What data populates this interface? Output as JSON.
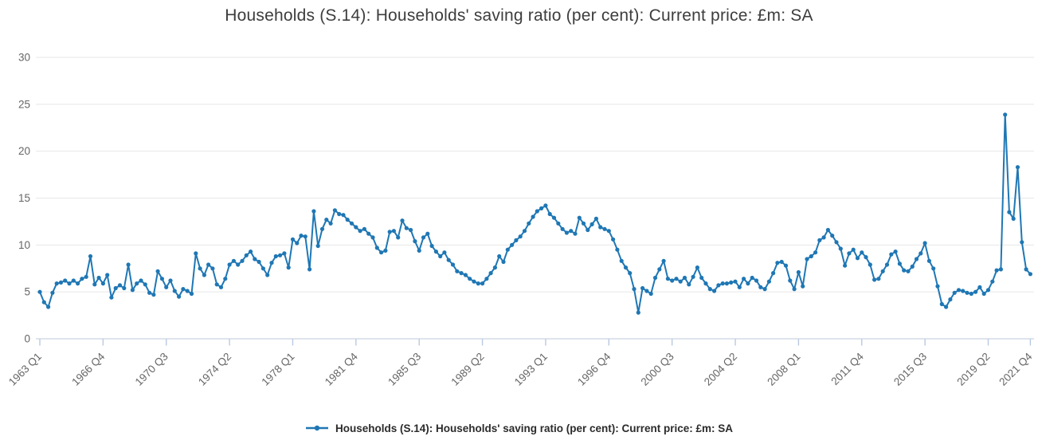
{
  "title": "Households (S.14): Households' saving ratio (per cent): Current price: £m: SA",
  "legend": {
    "label": "Households (S.14): Households' saving ratio (per cent): Current price: £m: SA",
    "marker": "line-with-dot"
  },
  "colors": {
    "line": "#1f77b4",
    "grid": "#e7e7e7",
    "axis_line": "#c9d3e2",
    "tick_mark": "#b9c9e2",
    "title_text": "#3d3d3d",
    "tick_text": "#666666",
    "legend_text": "#2b2b2b",
    "background": "#ffffff"
  },
  "chart_data": {
    "type": "line",
    "title": "Households (S.14): Households' saving ratio (per cent): Current price: £m: SA",
    "xlabel": "",
    "ylabel": "",
    "grid": "horizontal-only",
    "legend_position": "bottom-center",
    "marker": "circle",
    "x": {
      "start": "1963 Q1",
      "end": "2021 Q4",
      "frequency": "quarterly",
      "tick_labels": [
        "1963 Q1",
        "1966 Q4",
        "1970 Q3",
        "1974 Q2",
        "1978 Q1",
        "1981 Q4",
        "1985 Q3",
        "1989 Q2",
        "1993 Q1",
        "1996 Q4",
        "2000 Q3",
        "2004 Q2",
        "2008 Q1",
        "2011 Q4",
        "2015 Q3",
        "2019 Q2",
        "2021 Q4"
      ],
      "tick_indices": [
        0,
        15,
        30,
        45,
        60,
        75,
        90,
        105,
        120,
        135,
        150,
        165,
        180,
        195,
        210,
        225,
        235
      ]
    },
    "y": {
      "ticks": [
        0,
        5,
        10,
        15,
        20,
        25,
        30
      ],
      "range": [
        0,
        30
      ]
    },
    "series": [
      {
        "name": "Households (S.14): Households' saving ratio (per cent): Current price: £m: SA",
        "color": "#1f77b4",
        "values": [
          5.0,
          3.9,
          3.4,
          4.9,
          5.9,
          6.0,
          6.2,
          5.9,
          6.2,
          5.9,
          6.4,
          6.6,
          8.8,
          5.8,
          6.5,
          5.9,
          6.8,
          4.4,
          5.4,
          5.7,
          5.4,
          7.9,
          5.2,
          5.9,
          6.2,
          5.8,
          4.9,
          4.7,
          7.2,
          6.4,
          5.5,
          6.2,
          5.1,
          4.5,
          5.3,
          5.1,
          4.8,
          9.1,
          7.5,
          6.8,
          7.9,
          7.5,
          5.8,
          5.5,
          6.4,
          7.9,
          8.3,
          7.9,
          8.3,
          8.9,
          9.3,
          8.5,
          8.2,
          7.5,
          6.8,
          8.1,
          8.8,
          8.9,
          9.1,
          7.6,
          10.6,
          10.2,
          11.0,
          10.9,
          7.4,
          13.6,
          9.9,
          11.7,
          12.7,
          12.3,
          13.7,
          13.3,
          13.2,
          12.7,
          12.3,
          11.9,
          11.5,
          11.7,
          11.2,
          10.8,
          9.7,
          9.2,
          9.4,
          11.4,
          11.5,
          10.8,
          12.6,
          11.8,
          11.6,
          10.4,
          9.4,
          10.8,
          11.2,
          9.9,
          9.3,
          8.8,
          9.2,
          8.4,
          7.9,
          7.2,
          7.0,
          6.8,
          6.4,
          6.1,
          5.9,
          5.9,
          6.4,
          7.0,
          7.6,
          8.8,
          8.2,
          9.5,
          10.0,
          10.5,
          10.9,
          11.5,
          12.3,
          13.0,
          13.6,
          13.9,
          14.2,
          13.3,
          12.9,
          12.3,
          11.7,
          11.3,
          11.5,
          11.2,
          12.9,
          12.3,
          11.6,
          12.2,
          12.8,
          11.9,
          11.7,
          11.5,
          10.6,
          9.5,
          8.3,
          7.6,
          7.0,
          5.3,
          2.8,
          5.4,
          5.1,
          4.8,
          6.5,
          7.4,
          8.3,
          6.4,
          6.2,
          6.4,
          6.1,
          6.5,
          5.8,
          6.6,
          7.6,
          6.5,
          5.9,
          5.3,
          5.1,
          5.7,
          5.9,
          5.9,
          6.0,
          6.1,
          5.5,
          6.4,
          5.9,
          6.5,
          6.2,
          5.5,
          5.3,
          6.1,
          7.0,
          8.1,
          8.2,
          7.8,
          6.2,
          5.3,
          7.1,
          5.6,
          8.5,
          8.8,
          9.2,
          10.5,
          10.8,
          11.6,
          11.0,
          10.3,
          9.6,
          7.8,
          9.1,
          9.5,
          8.6,
          9.2,
          8.7,
          7.9,
          6.3,
          6.4,
          7.2,
          7.9,
          9.0,
          9.3,
          8.0,
          7.3,
          7.2,
          7.7,
          8.5,
          9.1,
          10.2,
          8.3,
          7.5,
          5.6,
          3.7,
          3.4,
          4.2,
          4.9,
          5.2,
          5.1,
          4.9,
          4.8,
          5.0,
          5.5,
          4.8,
          5.2,
          6.1,
          7.3,
          7.4,
          23.9,
          13.5,
          12.8,
          18.3,
          10.3,
          7.4,
          6.9
        ]
      }
    ]
  }
}
